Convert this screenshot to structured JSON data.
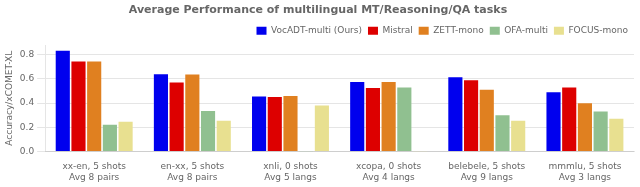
{
  "chart_data": {
    "type": "bar",
    "title": "Average Performance of multilingual MT/Reasoning/QA tasks",
    "ylabel": "Accuracy/xCOMET-XL",
    "categories": [
      "xx-en, 5 shots\nAvg 8 pairs",
      "en-xx, 5 shots\nAvg 8 pairs",
      "xnli, 0 shots\nAvg 5 langs",
      "xcopa, 0 shots\nAvg 4 langs",
      "belebele, 5 shots\nAvg 9 langs",
      "mmmlu, 5 shots\nAvg 3 langs"
    ],
    "series": [
      {
        "name": "VocADT-multi (Ours)",
        "color": "#0000ee",
        "values": [
          0.835,
          0.64,
          0.455,
          0.575,
          0.615,
          0.49
        ]
      },
      {
        "name": "Mistral",
        "color": "#dd0000",
        "values": [
          0.745,
          0.57,
          0.45,
          0.525,
          0.59,
          0.53
        ]
      },
      {
        "name": "ZETT-mono",
        "color": "#e08020",
        "values": [
          0.745,
          0.638,
          0.46,
          0.575,
          0.51,
          0.4
        ]
      },
      {
        "name": "OFA-multi",
        "color": "#90c090",
        "values": [
          0.22,
          0.335,
          0.001,
          0.53,
          0.3,
          0.33
        ]
      },
      {
        "name": "FOCUS-mono",
        "color": "#e8e090",
        "values": [
          0.245,
          0.255,
          0.38,
          0.001,
          0.255,
          0.27
        ]
      }
    ],
    "ylim": [
      0.0,
      0.88
    ],
    "yticks": [
      {
        "value": 0.0,
        "label": "0.0"
      },
      0.2,
      0.4,
      0.6,
      0.8
    ],
    "grid": true,
    "legend": "upper right"
  }
}
